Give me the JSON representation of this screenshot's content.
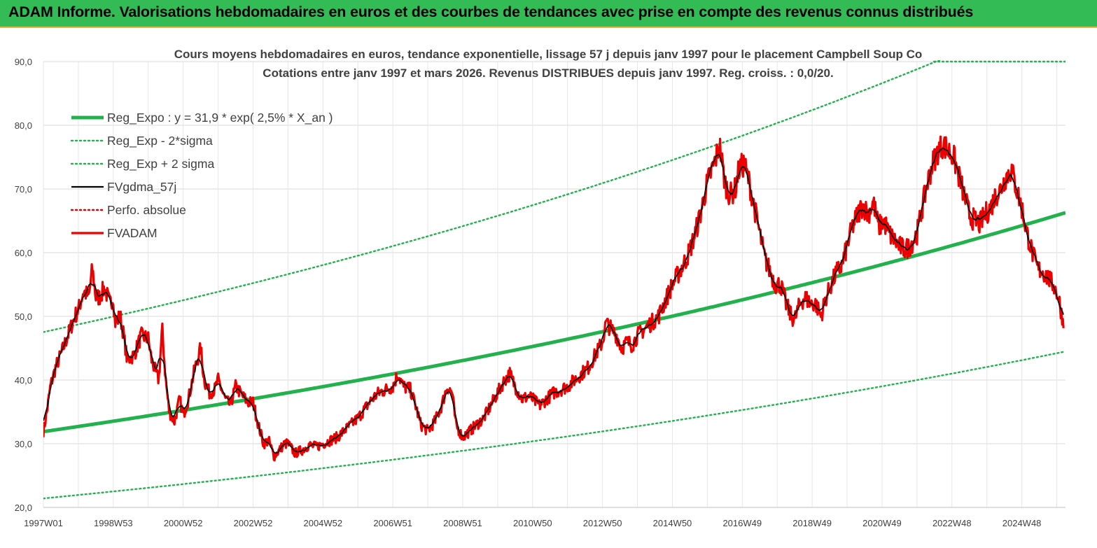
{
  "banner": {
    "title": "ADAM Informe. Valorisations hebdomadaires en euros et des courbes de tendances avec prise en compte des revenus connus distribués",
    "color": "#33bb55"
  },
  "chart_data": {
    "type": "line",
    "title": "Cours moyens hebdomadaires en euros, tendance exponentielle, lissage 57 j depuis janv 1997 pour le placement Campbell Soup Co",
    "subtitle": "Cotations entre janv 1997 et mars 2026. Revenus DISTRIBUES depuis janv 1997. Reg. croiss. : 0,0/20.",
    "xlabel": "",
    "ylabel": "",
    "xlim": [
      1997.0,
      2026.25
    ],
    "ylim": [
      20,
      90
    ],
    "y_ticks": [
      "20,0",
      "30,0",
      "40,0",
      "50,0",
      "60,0",
      "70,0",
      "80,0",
      "90,0"
    ],
    "x_ticks": [
      {
        "label": "1997W01",
        "t": 1997.0
      },
      {
        "label": "1998W53",
        "t": 1999.0
      },
      {
        "label": "2000W52",
        "t": 2001.0
      },
      {
        "label": "2002W52",
        "t": 2003.0
      },
      {
        "label": "2004W52",
        "t": 2005.0
      },
      {
        "label": "2006W51",
        "t": 2007.0
      },
      {
        "label": "2008W51",
        "t": 2009.0
      },
      {
        "label": "2010W50",
        "t": 2011.0
      },
      {
        "label": "2012W50",
        "t": 2013.0
      },
      {
        "label": "2014W50",
        "t": 2015.0
      },
      {
        "label": "2016W49",
        "t": 2017.0
      },
      {
        "label": "2018W49",
        "t": 2019.0
      },
      {
        "label": "2020W49",
        "t": 2021.0
      },
      {
        "label": "2022W48",
        "t": 2023.0
      },
      {
        "label": "2024W48",
        "t": 2025.0
      }
    ],
    "grid": true,
    "legend_position": "top-left",
    "regression": {
      "a": 31.9,
      "rate": 0.025,
      "sigma_factor": 1.49
    },
    "series": [
      {
        "name": "Reg_Expo : y = 31,9 * exp( 2,5% *  X_an )",
        "color": "#22b14c",
        "style": "solid-thick",
        "kind": "reg"
      },
      {
        "name": "Reg_Exp - 2*sigma",
        "color": "#22b14c",
        "style": "dotted",
        "kind": "reg_low"
      },
      {
        "name": "Reg_Exp + 2 sigma",
        "color": "#22b14c",
        "style": "dotted",
        "kind": "reg_high"
      },
      {
        "name": "FVgdma_57j",
        "color": "#000000",
        "style": "solid-thin",
        "kind": "smooth"
      },
      {
        "name": "Perfo. absolue",
        "color": "#e00000",
        "style": "dotted",
        "kind": "none"
      },
      {
        "name": "FVADAM",
        "color": "#ee0000",
        "style": "solid-medium",
        "kind": "price"
      }
    ],
    "price_points": [
      [
        1997.0,
        31.9
      ],
      [
        1997.1,
        35
      ],
      [
        1997.2,
        39
      ],
      [
        1997.35,
        42
      ],
      [
        1997.5,
        44
      ],
      [
        1997.7,
        47
      ],
      [
        1997.9,
        50
      ],
      [
        1998.0,
        51
      ],
      [
        1998.15,
        54
      ],
      [
        1998.3,
        53
      ],
      [
        1998.4,
        57.5
      ],
      [
        1998.5,
        53
      ],
      [
        1998.6,
        53
      ],
      [
        1998.75,
        54.5
      ],
      [
        1998.9,
        52
      ],
      [
        1999.0,
        53
      ],
      [
        1999.05,
        49
      ],
      [
        1999.2,
        50
      ],
      [
        1999.3,
        47
      ],
      [
        1999.4,
        43
      ],
      [
        1999.6,
        44
      ],
      [
        1999.8,
        47
      ],
      [
        2000.0,
        46.5
      ],
      [
        2000.1,
        43
      ],
      [
        2000.3,
        40
      ],
      [
        2000.4,
        48
      ],
      [
        2000.5,
        40
      ],
      [
        2000.6,
        35
      ],
      [
        2000.75,
        33.5
      ],
      [
        2000.9,
        37
      ],
      [
        2001.0,
        34.5
      ],
      [
        2001.15,
        37
      ],
      [
        2001.3,
        41
      ],
      [
        2001.5,
        45
      ],
      [
        2001.6,
        40
      ],
      [
        2001.75,
        38
      ],
      [
        2001.9,
        38.5
      ],
      [
        2002.0,
        40
      ],
      [
        2002.2,
        37
      ],
      [
        2002.35,
        36
      ],
      [
        2002.5,
        39
      ],
      [
        2002.7,
        37.5
      ],
      [
        2002.85,
        36.5
      ],
      [
        2003.0,
        36.5
      ],
      [
        2003.15,
        33
      ],
      [
        2003.3,
        30
      ],
      [
        2003.45,
        30.5
      ],
      [
        2003.6,
        28
      ],
      [
        2003.75,
        29
      ],
      [
        2003.9,
        30
      ],
      [
        2004.0,
        30
      ],
      [
        2004.2,
        28.5
      ],
      [
        2004.4,
        29
      ],
      [
        2004.6,
        29.8
      ],
      [
        2004.8,
        29.5
      ],
      [
        2005.0,
        30
      ],
      [
        2005.2,
        30.5
      ],
      [
        2005.4,
        31
      ],
      [
        2005.6,
        32
      ],
      [
        2005.8,
        33
      ],
      [
        2006.0,
        34
      ],
      [
        2006.2,
        35.5
      ],
      [
        2006.4,
        37
      ],
      [
        2006.6,
        38
      ],
      [
        2006.8,
        38.5
      ],
      [
        2007.0,
        39
      ],
      [
        2007.15,
        41
      ],
      [
        2007.3,
        39
      ],
      [
        2007.5,
        38.5
      ],
      [
        2007.65,
        36
      ],
      [
        2007.8,
        33
      ],
      [
        2008.0,
        32
      ],
      [
        2008.2,
        33.5
      ],
      [
        2008.4,
        36
      ],
      [
        2008.55,
        39
      ],
      [
        2008.7,
        38
      ],
      [
        2008.8,
        33
      ],
      [
        2009.0,
        31
      ],
      [
        2009.2,
        32
      ],
      [
        2009.4,
        33
      ],
      [
        2009.6,
        34
      ],
      [
        2009.8,
        36
      ],
      [
        2010.0,
        38
      ],
      [
        2010.2,
        40
      ],
      [
        2010.35,
        41
      ],
      [
        2010.5,
        39
      ],
      [
        2010.7,
        37
      ],
      [
        2010.9,
        37.5
      ],
      [
        2011.0,
        37
      ],
      [
        2011.2,
        36
      ],
      [
        2011.4,
        37
      ],
      [
        2011.6,
        38
      ],
      [
        2011.8,
        38.5
      ],
      [
        2012.0,
        39
      ],
      [
        2012.2,
        40
      ],
      [
        2012.4,
        41
      ],
      [
        2012.6,
        42
      ],
      [
        2012.8,
        44
      ],
      [
        2013.0,
        46
      ],
      [
        2013.1,
        49
      ],
      [
        2013.25,
        48
      ],
      [
        2013.4,
        47
      ],
      [
        2013.55,
        45
      ],
      [
        2013.7,
        46
      ],
      [
        2013.85,
        45.5
      ],
      [
        2014.0,
        47
      ],
      [
        2014.2,
        48
      ],
      [
        2014.4,
        49
      ],
      [
        2014.6,
        50
      ],
      [
        2014.8,
        52.5
      ],
      [
        2015.0,
        55
      ],
      [
        2015.2,
        57
      ],
      [
        2015.4,
        59
      ],
      [
        2015.6,
        62
      ],
      [
        2015.8,
        66
      ],
      [
        2016.0,
        71
      ],
      [
        2016.2,
        74
      ],
      [
        2016.35,
        77
      ],
      [
        2016.5,
        71
      ],
      [
        2016.65,
        69
      ],
      [
        2016.8,
        70
      ],
      [
        2016.9,
        73
      ],
      [
        2017.05,
        74
      ],
      [
        2017.2,
        71
      ],
      [
        2017.35,
        67
      ],
      [
        2017.5,
        63
      ],
      [
        2017.65,
        59
      ],
      [
        2017.8,
        57
      ],
      [
        2017.95,
        55
      ],
      [
        2018.1,
        55
      ],
      [
        2018.25,
        52
      ],
      [
        2018.4,
        50
      ],
      [
        2018.5,
        49.5
      ],
      [
        2018.65,
        52
      ],
      [
        2018.8,
        53
      ],
      [
        2018.95,
        52
      ],
      [
        2019.1,
        52
      ],
      [
        2019.25,
        50
      ],
      [
        2019.4,
        53
      ],
      [
        2019.55,
        55
      ],
      [
        2019.7,
        57
      ],
      [
        2019.85,
        58
      ],
      [
        2020.0,
        61
      ],
      [
        2020.15,
        64
      ],
      [
        2020.3,
        66
      ],
      [
        2020.45,
        67.5
      ],
      [
        2020.6,
        66
      ],
      [
        2020.75,
        68
      ],
      [
        2020.9,
        64
      ],
      [
        2021.05,
        65
      ],
      [
        2021.2,
        63
      ],
      [
        2021.35,
        62
      ],
      [
        2021.5,
        61
      ],
      [
        2021.65,
        60.5
      ],
      [
        2021.8,
        61
      ],
      [
        2022.0,
        63
      ],
      [
        2022.15,
        67
      ],
      [
        2022.3,
        71
      ],
      [
        2022.45,
        74
      ],
      [
        2022.6,
        76
      ],
      [
        2022.75,
        77
      ],
      [
        2022.9,
        76
      ],
      [
        2023.05,
        75
      ],
      [
        2023.2,
        72
      ],
      [
        2023.35,
        69
      ],
      [
        2023.5,
        66
      ],
      [
        2023.65,
        65
      ],
      [
        2023.8,
        64.5
      ],
      [
        2023.95,
        66
      ],
      [
        2024.1,
        67
      ],
      [
        2024.25,
        69
      ],
      [
        2024.4,
        70
      ],
      [
        2024.55,
        72
      ],
      [
        2024.7,
        73
      ],
      [
        2024.85,
        70
      ],
      [
        2025.0,
        67
      ],
      [
        2025.15,
        63
      ],
      [
        2025.3,
        60
      ],
      [
        2025.45,
        57.5
      ],
      [
        2025.6,
        57
      ],
      [
        2025.75,
        56
      ],
      [
        2025.9,
        55
      ],
      [
        2026.05,
        53
      ],
      [
        2026.2,
        48.5
      ]
    ]
  }
}
